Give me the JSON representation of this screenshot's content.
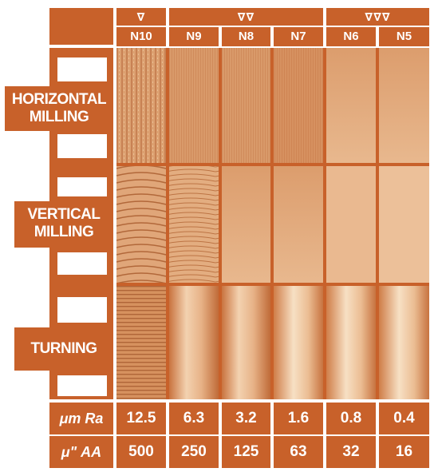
{
  "columns": [
    {
      "grade": "N10",
      "ra": "12.5",
      "aa": "500"
    },
    {
      "grade": "N9",
      "ra": "6.3",
      "aa": "250"
    },
    {
      "grade": "N8",
      "ra": "3.2",
      "aa": "125"
    },
    {
      "grade": "N7",
      "ra": "1.6",
      "aa": "63"
    },
    {
      "grade": "N6",
      "ra": "0.8",
      "aa": "32"
    },
    {
      "grade": "N5",
      "ra": "0.4",
      "aa": "16"
    }
  ],
  "symbols": [
    "∇",
    "∇∇",
    "∇∇∇"
  ],
  "rows": [
    {
      "line1": "HORIZONTAL",
      "line2": "MILLING"
    },
    {
      "line1": "VERTICAL",
      "line2": "MILLING"
    },
    {
      "line1": "TURNING",
      "line2": ""
    }
  ],
  "units": {
    "ra": "μm Ra",
    "aa": "μ\" AA"
  },
  "colors": {
    "accent": "#c8612a",
    "sample": "#d9905c",
    "background": "#ffffff"
  }
}
